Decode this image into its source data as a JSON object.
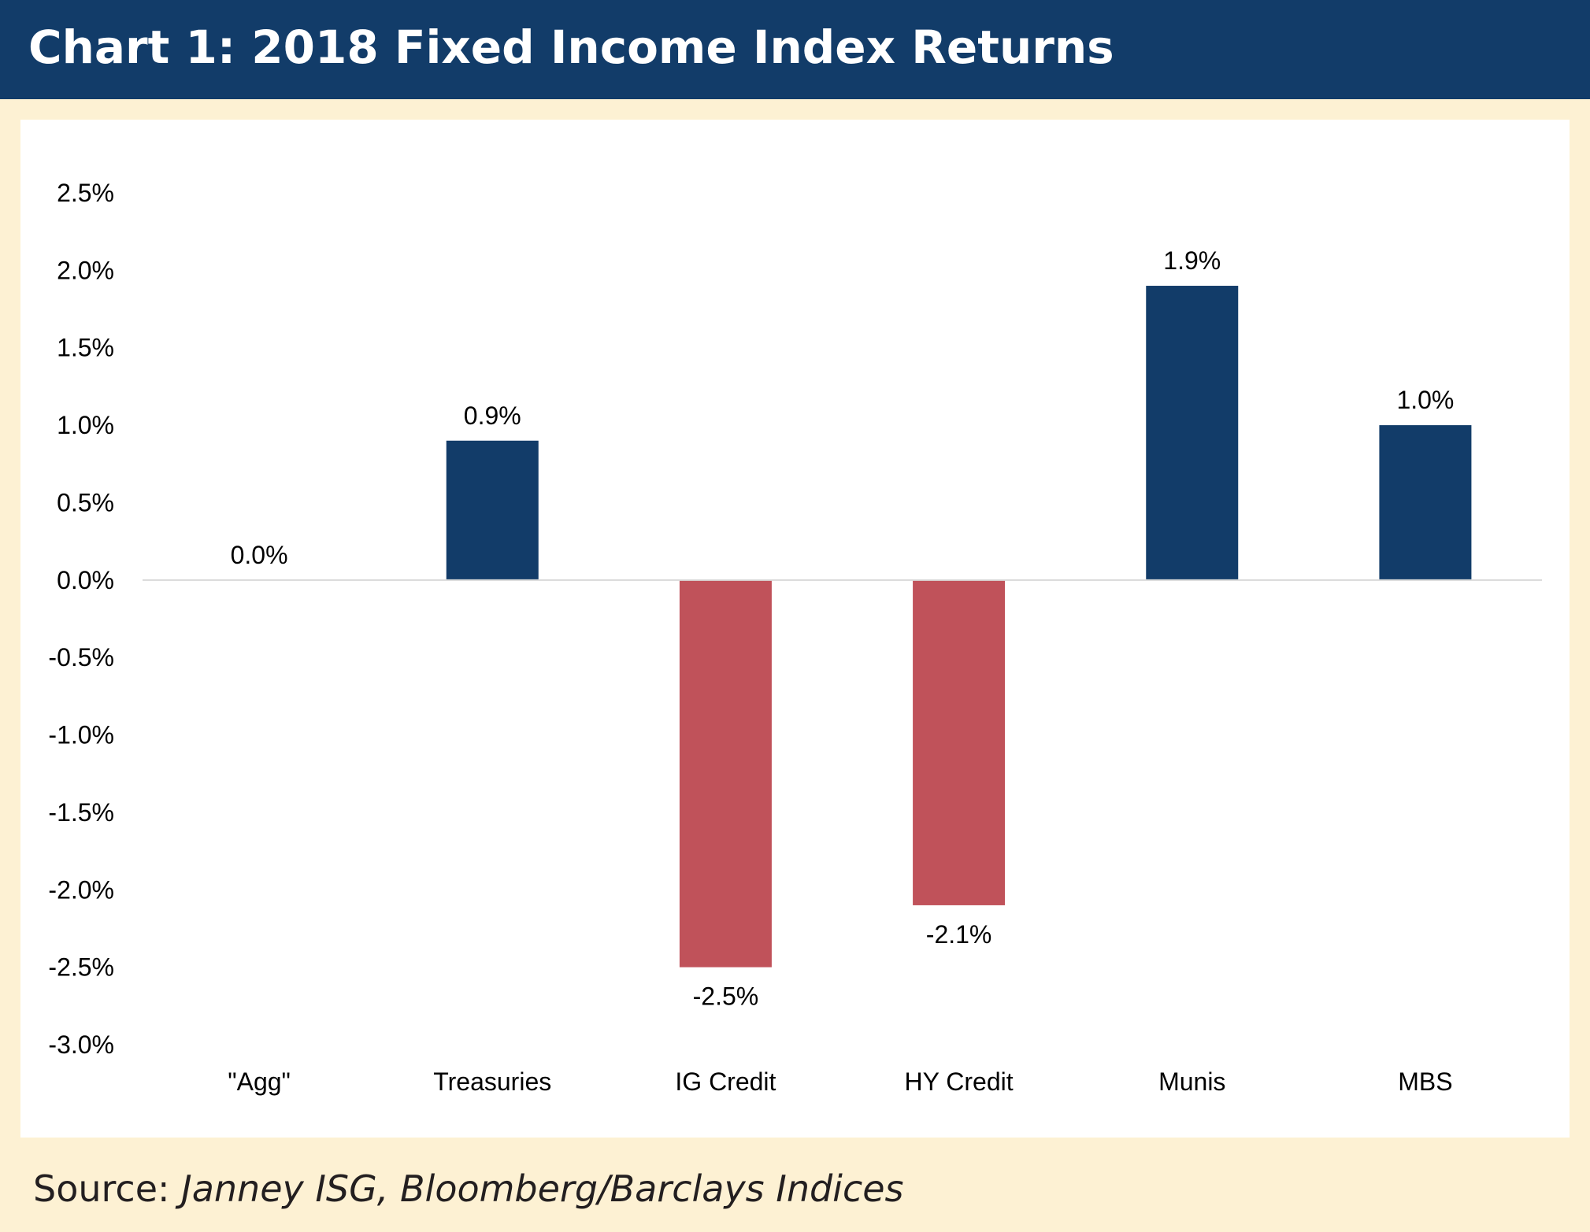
{
  "header": {
    "title": "Chart 1:  2018 Fixed Income Index Returns"
  },
  "footer": {
    "source_label": "Source:",
    "source_detail": "Janney ISG, Bloomberg/Barclays Indices"
  },
  "colors": {
    "header_bg": "#123c69",
    "page_bg": "#fdf1d3",
    "positive_bar": "#123c69",
    "negative_bar": "#c0525a",
    "zero_line": "#d9d9d9"
  },
  "chart_data": {
    "type": "bar",
    "title": "2018 Fixed Income Index Returns",
    "xlabel": "",
    "ylabel": "",
    "categories": [
      "\"Agg\"",
      "Treasuries",
      "IG Credit",
      "HY Credit",
      "Munis",
      "MBS"
    ],
    "values": [
      0.0,
      0.9,
      -2.5,
      -2.1,
      1.9,
      1.0
    ],
    "data_labels": [
      "0.0%",
      "0.9%",
      "-2.5%",
      "-2.1%",
      "1.9%",
      "1.0%"
    ],
    "ylim": [
      -3.0,
      2.5
    ],
    "yticks": [
      2.5,
      2.0,
      1.5,
      1.0,
      0.5,
      0.0,
      -0.5,
      -1.0,
      -1.5,
      -2.0,
      -2.5,
      -3.0
    ],
    "ytick_labels": [
      "2.5%",
      "2.0%",
      "1.5%",
      "1.0%",
      "0.5%",
      "0.0%",
      "-0.5%",
      "-1.0%",
      "-1.5%",
      "-2.0%",
      "-2.5%",
      "-3.0%"
    ],
    "grid": false,
    "legend": "none"
  }
}
